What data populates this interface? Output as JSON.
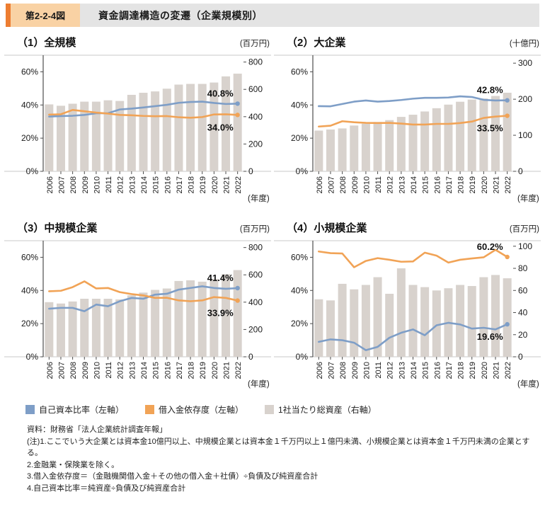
{
  "header": {
    "figure_label": "第2-2-4図",
    "title": "資金調達構造の変遷（企業規模別）"
  },
  "colors": {
    "equity_line": "#7e9ec7",
    "borrowing_line": "#f1a356",
    "assets_bar": "#d8d2cd",
    "accent": "#ed7d31",
    "figure_label_bg": "#f9d2a4",
    "title_strip_bg": "#e4e4e4"
  },
  "legend": [
    {
      "label": "自己資本比率（左軸）",
      "color_key": "equity_line"
    },
    {
      "label": "借入金依存度（左軸）",
      "color_key": "borrowing_line"
    },
    {
      "label": "1社当たり総資産（右軸）",
      "color_key": "assets_bar"
    }
  ],
  "x_axis_label": "(年度)",
  "notes": [
    "資料：財務省「法人企業統計調査年報」",
    "(注)1.ここでいう大企業とは資本金10億円以上、中規模企業とは資本金１千万円以上１億円未満、小規模企業とは資本金１千万円未満の企業とする。",
    "2.金融業・保険業を除く。",
    "3.借入金依存度＝（金融機関借入金＋その他の借入金＋社債）÷負債及び純資産合計",
    "4.自己資本比率＝純資産÷負債及び純資産合計"
  ],
  "chart_data": [
    {
      "type": "bar",
      "panel_title": "（1）全規模",
      "unit_label": "(百万円)",
      "categories": [
        2006,
        2007,
        2008,
        2009,
        2010,
        2011,
        2012,
        2013,
        2014,
        2015,
        2016,
        2017,
        2018,
        2019,
        2020,
        2021,
        2022
      ],
      "left_axis": {
        "ticks": [
          0,
          20,
          40,
          60
        ],
        "range": [
          0,
          70
        ],
        "format": "percent"
      },
      "right_axis": {
        "ticks": [
          0,
          200,
          400,
          600,
          800
        ],
        "max": 850
      },
      "series": [
        {
          "name": "自己資本比率（左軸）",
          "type": "line",
          "axis": "left",
          "color_key": "equity_line",
          "values": [
            33.0,
            33.3,
            33.5,
            34.0,
            35.0,
            35.0,
            37.3,
            37.8,
            38.5,
            39.3,
            40.1,
            41.3,
            41.8,
            42.0,
            41.2,
            40.6,
            40.8
          ]
        },
        {
          "name": "借入金依存度（左軸）",
          "type": "line",
          "axis": "left",
          "color_key": "borrowing_line",
          "values": [
            34.2,
            34.4,
            37.0,
            36.2,
            35.4,
            34.8,
            34.0,
            33.8,
            33.4,
            33.2,
            33.3,
            32.6,
            32.3,
            32.7,
            34.3,
            34.4,
            34.0
          ]
        },
        {
          "name": "1社当たり総資産（右軸）",
          "type": "bar",
          "axis": "right",
          "color_key": "assets_bar",
          "values": [
            490,
            480,
            495,
            510,
            510,
            520,
            515,
            560,
            575,
            585,
            605,
            635,
            640,
            640,
            650,
            695,
            715
          ]
        }
      ],
      "end_labels": {
        "equity": "40.8%",
        "borrowing": "34.0%"
      }
    },
    {
      "type": "bar",
      "panel_title": "（2）大企業",
      "unit_label": "(十億円)",
      "categories": [
        2006,
        2007,
        2008,
        2009,
        2010,
        2011,
        2012,
        2013,
        2014,
        2015,
        2016,
        2017,
        2018,
        2019,
        2020,
        2021,
        2022
      ],
      "left_axis": {
        "ticks": [
          0,
          20,
          40,
          60
        ],
        "range": [
          0,
          70
        ],
        "format": "percent"
      },
      "right_axis": {
        "ticks": [
          0,
          100,
          200,
          300
        ],
        "max": 322
      },
      "series": [
        {
          "name": "自己資本比率（左軸）",
          "type": "line",
          "axis": "left",
          "color_key": "equity_line",
          "values": [
            39.3,
            39.2,
            40.6,
            42.0,
            42.7,
            42.0,
            42.4,
            43.0,
            43.8,
            44.3,
            44.3,
            44.5,
            45.2,
            44.8,
            43.1,
            42.7,
            42.8
          ]
        },
        {
          "name": "借入金依存度（左軸）",
          "type": "line",
          "axis": "left",
          "color_key": "borrowing_line",
          "values": [
            27.0,
            27.5,
            30.2,
            29.6,
            29.2,
            29.1,
            29.2,
            28.8,
            28.2,
            28.2,
            28.6,
            28.6,
            29.1,
            30.0,
            32.2,
            33.0,
            33.5
          ]
        },
        {
          "name": "1社当たり総資産（右軸）",
          "type": "bar",
          "axis": "right",
          "color_key": "assets_bar",
          "values": [
            113,
            116,
            119,
            127,
            132,
            137,
            142,
            151,
            157,
            166,
            175,
            185,
            193,
            199,
            202,
            209,
            218
          ]
        }
      ],
      "end_labels": {
        "equity": "42.8%",
        "borrowing": "33.5%"
      }
    },
    {
      "type": "bar",
      "panel_title": "（3）中規模企業",
      "unit_label": "(百万円)",
      "categories": [
        2006,
        2007,
        2008,
        2009,
        2010,
        2011,
        2012,
        2013,
        2014,
        2015,
        2016,
        2017,
        2018,
        2019,
        2020,
        2021,
        2022
      ],
      "left_axis": {
        "ticks": [
          0,
          20,
          40,
          60
        ],
        "range": [
          0,
          70
        ],
        "format": "percent"
      },
      "right_axis": {
        "ticks": [
          0,
          200,
          400,
          600,
          800
        ],
        "max": 850
      },
      "series": [
        {
          "name": "自己資本比率（左軸）",
          "type": "line",
          "axis": "left",
          "color_key": "equity_line",
          "values": [
            29.0,
            29.5,
            29.5,
            27.5,
            31.5,
            30.5,
            33.5,
            35.5,
            35.0,
            37.5,
            38.0,
            40.5,
            41.5,
            42.5,
            41.5,
            41.0,
            41.4
          ]
        },
        {
          "name": "借入金依存度（左軸）",
          "type": "line",
          "axis": "left",
          "color_key": "borrowing_line",
          "values": [
            39.5,
            39.8,
            42.0,
            45.5,
            41.2,
            41.5,
            39.0,
            37.8,
            37.0,
            35.5,
            35.6,
            34.0,
            33.5,
            34.0,
            36.0,
            35.5,
            33.9
          ]
        },
        {
          "name": "1社当たり総資産（右軸）",
          "type": "bar",
          "axis": "right",
          "color_key": "assets_bar",
          "values": [
            400,
            390,
            405,
            425,
            425,
            425,
            420,
            450,
            470,
            490,
            500,
            555,
            560,
            550,
            570,
            605,
            635
          ]
        }
      ],
      "end_labels": {
        "equity": "41.4%",
        "borrowing": "33.9%"
      }
    },
    {
      "type": "bar",
      "panel_title": "（4）小規模企業",
      "unit_label": "(百万円)",
      "categories": [
        2006,
        2007,
        2008,
        2009,
        2010,
        2011,
        2012,
        2013,
        2014,
        2015,
        2016,
        2017,
        2018,
        2019,
        2020,
        2021,
        2022
      ],
      "left_axis": {
        "ticks": [
          0,
          20,
          40,
          60
        ],
        "range": [
          0,
          70
        ],
        "format": "percent"
      },
      "right_axis": {
        "ticks": [
          0,
          20,
          40,
          60,
          80,
          100
        ],
        "max": 105
      },
      "series": [
        {
          "name": "自己資本比率（左軸）",
          "type": "line",
          "axis": "left",
          "color_key": "equity_line",
          "values": [
            9.0,
            10.5,
            10.0,
            8.5,
            4.0,
            6.0,
            11.5,
            14.5,
            16.5,
            13.0,
            19.0,
            20.5,
            19.5,
            17.0,
            17.5,
            16.5,
            19.6
          ]
        },
        {
          "name": "借入金依存度（左軸）",
          "type": "line",
          "axis": "left",
          "color_key": "borrowing_line",
          "values": [
            63.5,
            62.5,
            62.3,
            54.0,
            57.8,
            59.5,
            58.5,
            57.3,
            57.5,
            62.8,
            61.0,
            56.8,
            58.5,
            59.3,
            60.0,
            64.5,
            60.2
          ]
        },
        {
          "name": "1社当たり総資産（右軸）",
          "type": "bar",
          "axis": "right",
          "color_key": "assets_bar",
          "values": [
            52,
            51,
            66,
            61,
            65,
            72,
            57,
            80,
            65,
            63,
            60,
            62,
            65,
            64,
            72,
            74,
            71
          ]
        }
      ],
      "end_labels": {
        "equity": "19.6%",
        "borrowing": "60.2%"
      }
    }
  ]
}
